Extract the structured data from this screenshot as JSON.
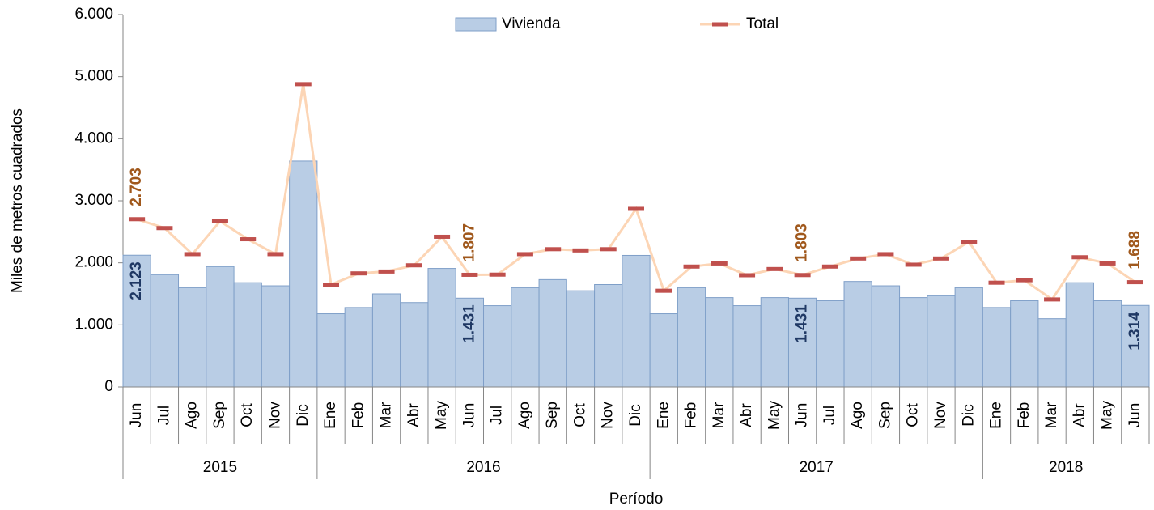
{
  "chart_data": {
    "type": "bar_line",
    "xlabel": "Período",
    "ylabel": "Miles de metros cuadrados",
    "categories": [
      "Jun",
      "Jul",
      "Ago",
      "Sep",
      "Oct",
      "Nov",
      "Dic",
      "Ene",
      "Feb",
      "Mar",
      "Abr",
      "May",
      "Jun",
      "Jul",
      "Ago",
      "Sep",
      "Oct",
      "Nov",
      "Dic",
      "Ene",
      "Feb",
      "Mar",
      "Abr",
      "May",
      "Jun",
      "Jul",
      "Ago",
      "Sep",
      "Oct",
      "Nov",
      "Dic",
      "Ene",
      "Feb",
      "Mar",
      "Abr",
      "May",
      "Jun"
    ],
    "groups": [
      {
        "label": "2015",
        "count": 7
      },
      {
        "label": "2016",
        "count": 12
      },
      {
        "label": "2017",
        "count": 12
      },
      {
        "label": "2018",
        "count": 6
      }
    ],
    "series": [
      {
        "name": "Vivienda",
        "kind": "bar",
        "color": "#b9cde5",
        "stroke": "#7f9fc8",
        "label_color": "#1f3864",
        "values": [
          2123,
          1810,
          1600,
          1940,
          1680,
          1630,
          3640,
          1180,
          1280,
          1500,
          1360,
          1910,
          1431,
          1310,
          1600,
          1730,
          1550,
          1650,
          2120,
          1180,
          1600,
          1440,
          1310,
          1440,
          1431,
          1390,
          1700,
          1630,
          1440,
          1470,
          1600,
          1280,
          1390,
          1100,
          1680,
          1390,
          1314
        ],
        "value_labels": [
          "2.123",
          null,
          null,
          null,
          null,
          null,
          null,
          null,
          null,
          null,
          null,
          null,
          "1.431",
          null,
          null,
          null,
          null,
          null,
          null,
          null,
          null,
          null,
          null,
          null,
          "1.431",
          null,
          null,
          null,
          null,
          null,
          null,
          null,
          null,
          null,
          null,
          null,
          "1.314"
        ]
      },
      {
        "name": "Total",
        "kind": "line",
        "color": "#fcd5b5",
        "marker_color": "#c0504d",
        "label_color": "#a0581c",
        "values": [
          2703,
          2560,
          2140,
          2670,
          2380,
          2140,
          4880,
          1650,
          1830,
          1860,
          1960,
          2420,
          1807,
          1810,
          2140,
          2220,
          2200,
          2220,
          2870,
          1550,
          1940,
          1990,
          1800,
          1900,
          1803,
          1940,
          2070,
          2140,
          1970,
          2070,
          2340,
          1680,
          1720,
          1410,
          2090,
          1990,
          1688
        ],
        "value_labels": [
          "2.703",
          null,
          null,
          null,
          null,
          null,
          null,
          null,
          null,
          null,
          null,
          null,
          "1.807",
          null,
          null,
          null,
          null,
          null,
          null,
          null,
          null,
          null,
          null,
          null,
          "1.803",
          null,
          null,
          null,
          null,
          null,
          null,
          null,
          null,
          null,
          null,
          null,
          "1.688"
        ]
      }
    ],
    "ylim": [
      0,
      6000
    ],
    "yticks": [
      0,
      {
        "value": 1000,
        "label": "1.000"
      },
      {
        "value": 2000,
        "label": "2.000"
      },
      {
        "value": 3000,
        "label": "3.000"
      },
      {
        "value": 4000,
        "label": "4.000"
      },
      {
        "value": 5000,
        "label": "5.000"
      },
      {
        "value": 6000,
        "label": "6.000"
      }
    ],
    "legend": "top"
  }
}
